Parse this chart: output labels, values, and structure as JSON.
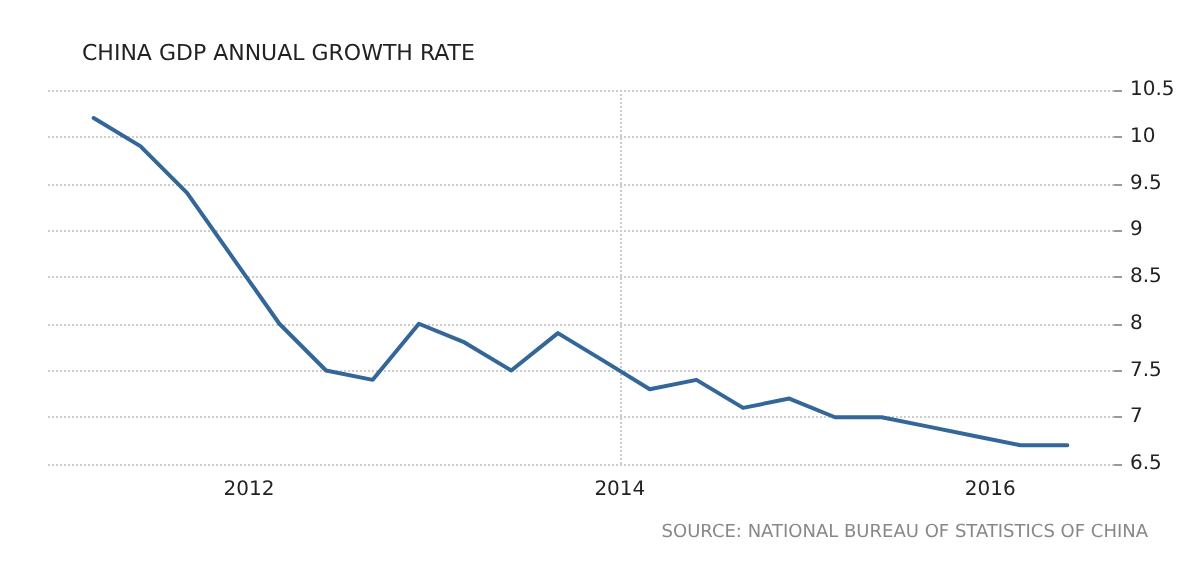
{
  "chart_data": {
    "type": "line",
    "title": "CHINA GDP ANNUAL GROWTH RATE",
    "x": [
      "2011-03",
      "2011-06",
      "2011-09",
      "2011-12",
      "2012-03",
      "2012-06",
      "2012-09",
      "2012-12",
      "2013-03",
      "2013-06",
      "2013-09",
      "2013-12",
      "2014-03",
      "2014-06",
      "2014-09",
      "2014-12",
      "2015-03",
      "2015-06",
      "2015-09",
      "2015-12",
      "2016-03",
      "2016-06"
    ],
    "series": [
      {
        "color": "#336699",
        "values": [
          10.2,
          9.9,
          9.4,
          8.7,
          8.0,
          7.5,
          7.4,
          8.0,
          7.8,
          7.5,
          7.9,
          7.6,
          7.3,
          7.4,
          7.1,
          7.2,
          7.0,
          7.0,
          6.9,
          6.8,
          6.7,
          6.7
        ]
      }
    ],
    "xlim": [
      "2010-12",
      "2016-09"
    ],
    "xticks": [
      {
        "value": "2012",
        "label": "2012"
      },
      {
        "value": "2014",
        "label": "2014"
      },
      {
        "value": "2016",
        "label": "2016"
      }
    ],
    "ylim": [
      6.5,
      10.5
    ],
    "yticks": [
      6.5,
      7,
      7.5,
      8,
      8.5,
      9,
      9.5,
      10,
      10.5
    ],
    "grid": true,
    "marker": "none",
    "line_style": "solid",
    "annotations": [
      "SOURCE: NATIONAL BUREAU OF STATISTICS OF CHINA"
    ]
  }
}
